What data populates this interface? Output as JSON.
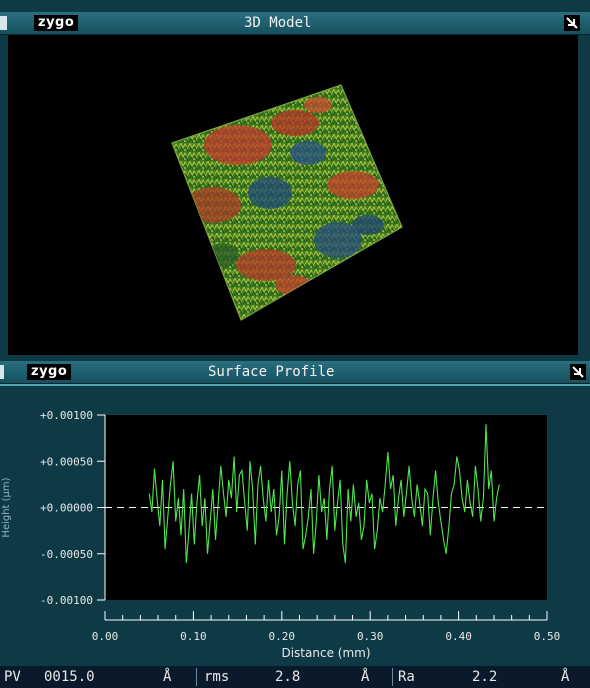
{
  "model_window": {
    "logo": "zygo",
    "title": "3D Model",
    "button_icon": "pin-icon"
  },
  "profile_window": {
    "logo": "zygo",
    "title": "Surface Profile",
    "button_icon": "pin-icon"
  },
  "colors": {
    "window_bg": "#0e3a45",
    "titlebar": "#15505e",
    "trace": "#4ee64e",
    "plot_bg": "#000000"
  },
  "chart_data": {
    "type": "line",
    "title": "",
    "xlabel": "Distance (mm)",
    "ylabel": "Height (µm)",
    "xlim": [
      0.0,
      0.5
    ],
    "ylim": [
      -0.001,
      0.001
    ],
    "x_ticks": [
      "0.00",
      "0.10",
      "0.20",
      "0.30",
      "0.40",
      "0.50"
    ],
    "y_ticks": [
      "+0.00100",
      "+0.00050",
      "+0.00000",
      "-0.00050",
      "-0.00100"
    ],
    "reference_line_y": 0.0,
    "series": [
      {
        "x": [
          0.05,
          0.053,
          0.056,
          0.059,
          0.062,
          0.065,
          0.068,
          0.071,
          0.074,
          0.077,
          0.08,
          0.083,
          0.086,
          0.089,
          0.092,
          0.095,
          0.098,
          0.101,
          0.104,
          0.107,
          0.11,
          0.113,
          0.116,
          0.119,
          0.122,
          0.125,
          0.128,
          0.131,
          0.134,
          0.137,
          0.14,
          0.143,
          0.146,
          0.149,
          0.152,
          0.155,
          0.158,
          0.161,
          0.164,
          0.167,
          0.17,
          0.173,
          0.176,
          0.179,
          0.182,
          0.185,
          0.188,
          0.191,
          0.194,
          0.197,
          0.2,
          0.203,
          0.206,
          0.209,
          0.212,
          0.215,
          0.218,
          0.221,
          0.224,
          0.227,
          0.23,
          0.233,
          0.236,
          0.239,
          0.242,
          0.245,
          0.248,
          0.251,
          0.254,
          0.257,
          0.26,
          0.263,
          0.266,
          0.269,
          0.272,
          0.275,
          0.278,
          0.281,
          0.284,
          0.287,
          0.29,
          0.293,
          0.296,
          0.299,
          0.302,
          0.305,
          0.308,
          0.311,
          0.314,
          0.317,
          0.32,
          0.323,
          0.326,
          0.329,
          0.332,
          0.335,
          0.338,
          0.341,
          0.344,
          0.347,
          0.35,
          0.353,
          0.356,
          0.359,
          0.362,
          0.365,
          0.368,
          0.371,
          0.374,
          0.377,
          0.38,
          0.383,
          0.386,
          0.389,
          0.392,
          0.395,
          0.398,
          0.401,
          0.404,
          0.407,
          0.41,
          0.413,
          0.416,
          0.419,
          0.422,
          0.425,
          0.428,
          0.431,
          0.434,
          0.437,
          0.44,
          0.443,
          0.446
        ],
        "y": [
          0.00015,
          -5e-05,
          0.00042,
          8e-05,
          -0.0002,
          0.0003,
          -0.00045,
          -0.0001,
          0.00025,
          0.0005,
          -0.00015,
          0.0001,
          -0.0003,
          0.0002,
          -0.0006,
          -0.00025,
          0.00015,
          -0.0004,
          5e-05,
          0.00035,
          -0.0002,
          0.0001,
          -0.0005,
          -0.00015,
          0.0002,
          -0.00035,
          5e-05,
          0.00045,
          0.00015,
          -0.0001,
          0.0003,
          0.0001,
          0.00055,
          -5e-05,
          0.00035,
          0.0004,
          5e-05,
          -0.00025,
          0.0005,
          0.0002,
          -0.0004,
          0.00025,
          0.00045,
          0.0001,
          -0.00015,
          0.0003,
          -5e-05,
          0.0002,
          -0.0003,
          -0.0001,
          0.0004,
          -0.0004,
          0.00015,
          0.0005,
          5e-05,
          -0.0002,
          0.00025,
          0.0004,
          -0.00045,
          -0.0003,
          -0.0001,
          0.0002,
          -0.0005,
          -0.00015,
          0.00035,
          -5e-05,
          0.0001,
          -0.00035,
          0.0002,
          0.00045,
          -0.00025,
          5e-05,
          0.0003,
          -0.0004,
          -0.0006,
          0.0002,
          -0.00015,
          0.00025,
          -0.0001,
          5e-05,
          -0.00035,
          -0.0002,
          0.0003,
          5e-05,
          0.00015,
          -0.00045,
          -0.00025,
          0.0001,
          -5e-05,
          0.00025,
          0.0006,
          0.0002,
          0.00035,
          -0.0002,
          0.0001,
          0.0003,
          -0.0001,
          0.00015,
          0.00045,
          0.0001,
          -0.0001,
          0.00025,
          5e-05,
          -0.0002,
          0.0002,
          0.00015,
          -0.0003,
          0.0001,
          0.0004,
          5e-05,
          -0.00015,
          -0.00035,
          -0.0005,
          -0.0002,
          0.00015,
          0.00025,
          0.00055,
          0.0004,
          0.0001,
          -5e-05,
          0.0003,
          5e-05,
          -0.0001,
          0.00045,
          0.0002,
          -0.00015,
          0.0001,
          0.0009,
          0.0002,
          0.0004,
          -0.00015,
          0.0001,
          0.00025
        ]
      }
    ]
  },
  "status_bar": {
    "pv_label": "PV",
    "pv_value": "0015.0",
    "pv_unit": "Å",
    "rms_label": "rms",
    "rms_value": "2.8",
    "rms_unit": "Å",
    "ra_label": "Ra",
    "ra_value": "2.2",
    "ra_unit": "Å"
  }
}
